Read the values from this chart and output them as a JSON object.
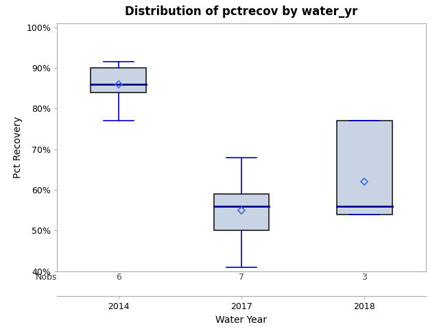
{
  "title": "Distribution of pctrecov by water_yr",
  "xlabel": "Water Year",
  "ylabel": "Pct Recovery",
  "categories": [
    "2014",
    "2017",
    "2018"
  ],
  "nobs": [
    6,
    7,
    3
  ],
  "boxes": [
    {
      "q1": 84,
      "median": 86,
      "q3": 90,
      "whislo": 77,
      "whishi": 91.5,
      "mean": 86.0
    },
    {
      "q1": 50,
      "median": 56,
      "q3": 59,
      "whislo": 41,
      "whishi": 68,
      "mean": 55.0
    },
    {
      "q1": 54,
      "median": 56,
      "q3": 77,
      "whislo": 54,
      "whishi": 77,
      "mean": 62.0
    }
  ],
  "ylim": [
    40,
    101
  ],
  "yticks": [
    40,
    50,
    60,
    70,
    80,
    90,
    100
  ],
  "ytick_labels": [
    "40%",
    "50%",
    "60%",
    "70%",
    "80%",
    "90%",
    "100%"
  ],
  "box_facecolor": "#c8d4e3",
  "box_edgecolor": "#1a1a1a",
  "median_color": "#00008b",
  "whisker_color": "#0000cd",
  "cap_color": "#0000cd",
  "mean_marker_color": "#4169e1",
  "bg_color": "#ffffff",
  "plot_bg_color": "#ffffff",
  "spine_color": "#aaaaaa",
  "title_fontsize": 12,
  "label_fontsize": 10,
  "tick_fontsize": 9,
  "nobs_fontsize": 9,
  "box_width": 0.45
}
